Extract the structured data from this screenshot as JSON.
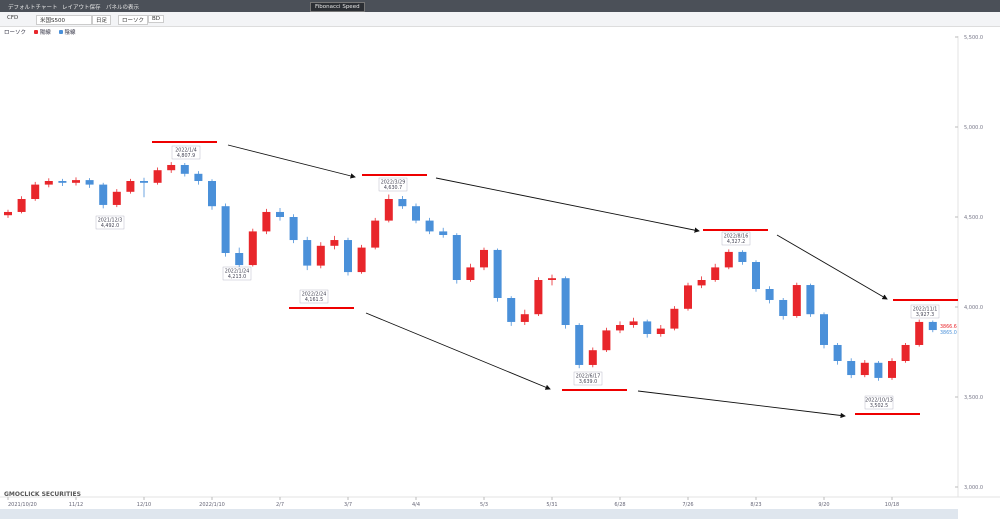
{
  "ui": {
    "toolbar": [
      "デフォルトチャート",
      "レイアウト保存",
      "パネルの表示",
      "Fibonacci Speed"
    ],
    "symbol_bar": [
      "CFD",
      "米国S500",
      "日足",
      "ローソク",
      "BD"
    ],
    "logo": "GMOCLICK SECURITIES"
  },
  "chart_data": {
    "type": "candlestick",
    "legend": [
      "ローソク",
      "陽線",
      "陰線"
    ],
    "up_color": "#e8262b",
    "down_color": "#4a90d9",
    "categories": [
      "2021/10/20",
      null,
      null,
      null,
      null,
      "11/12",
      null,
      null,
      null,
      null,
      "12/10",
      null,
      null,
      null,
      null,
      "2022/1/10",
      null,
      null,
      null,
      null,
      "2/7",
      null,
      null,
      null,
      null,
      "3/7",
      null,
      null,
      null,
      null,
      "4/4",
      null,
      null,
      null,
      null,
      "5/3",
      null,
      null,
      null,
      null,
      "5/31",
      null,
      null,
      null,
      null,
      "6/28",
      null,
      null,
      null,
      null,
      "7/26",
      null,
      null,
      null,
      null,
      "8/23",
      null,
      null,
      null,
      null,
      "9/20",
      null,
      null,
      null,
      null,
      "10/18",
      null,
      null,
      null
    ],
    "open": [
      4510,
      4528,
      4600,
      4680,
      4700,
      4690,
      4705,
      4680,
      4567,
      4640,
      4700,
      4690,
      4760,
      4789,
      4740,
      4700,
      4560,
      4300,
      4233,
      4420,
      4528,
      4500,
      4372,
      4230,
      4340,
      4372,
      4194,
      4330,
      4480,
      4600,
      4560,
      4480,
      4420,
      4400,
      4150,
      4220,
      4317,
      4050,
      3917,
      3960,
      4150,
      4160,
      3900,
      3678,
      3760,
      3870,
      3900,
      3920,
      3850,
      3880,
      3990,
      4120,
      4150,
      4220,
      4306,
      4250,
      4100,
      4039,
      3950,
      4122,
      3960,
      3789,
      3700,
      3622,
      3690,
      3606,
      3700,
      3789,
      3917
    ],
    "high": [
      4540,
      4615,
      4695,
      4715,
      4712,
      4720,
      4716,
      4690,
      4655,
      4712,
      4718,
      4775,
      4805,
      4800,
      4755,
      4710,
      4575,
      4330,
      4435,
      4545,
      4550,
      4515,
      4390,
      4360,
      4395,
      4385,
      4345,
      4495,
      4625,
      4617,
      4575,
      4495,
      4440,
      4410,
      4240,
      4330,
      4325,
      4060,
      3985,
      4165,
      4180,
      4170,
      3910,
      3775,
      3885,
      3920,
      3940,
      3930,
      3900,
      4005,
      4135,
      4170,
      4240,
      4320,
      4315,
      4260,
      4115,
      4050,
      4135,
      4130,
      3970,
      3800,
      3715,
      3705,
      3700,
      3715,
      3800,
      3930,
      3925
    ],
    "low": [
      4495,
      4520,
      4590,
      4665,
      4672,
      4675,
      4662,
      4548,
      4555,
      4630,
      4610,
      4680,
      4745,
      4725,
      4680,
      4540,
      4280,
      4200,
      4225,
      4405,
      4480,
      4355,
      4205,
      4215,
      4320,
      4175,
      4185,
      4320,
      4470,
      4545,
      4465,
      4405,
      4385,
      4130,
      4140,
      4205,
      4030,
      3895,
      3900,
      3950,
      4120,
      3880,
      3660,
      3665,
      3750,
      3855,
      3885,
      3830,
      3835,
      3870,
      3980,
      4105,
      4140,
      4210,
      4235,
      4085,
      4020,
      3930,
      3940,
      3945,
      3770,
      3680,
      3605,
      3610,
      3590,
      3595,
      3690,
      3780,
      3860
    ],
    "close": [
      4528,
      4600,
      4680,
      4700,
      4690,
      4705,
      4680,
      4567,
      4640,
      4700,
      4690,
      4760,
      4789,
      4740,
      4700,
      4560,
      4300,
      4233,
      4420,
      4528,
      4500,
      4372,
      4230,
      4340,
      4372,
      4194,
      4330,
      4480,
      4600,
      4560,
      4480,
      4420,
      4400,
      4150,
      4220,
      4317,
      4050,
      3917,
      3960,
      4150,
      4160,
      3900,
      3678,
      3760,
      3870,
      3900,
      3920,
      3850,
      3880,
      3990,
      4120,
      4150,
      4220,
      4306,
      4250,
      4100,
      4039,
      3950,
      4122,
      3960,
      3789,
      3700,
      3622,
      3690,
      3606,
      3700,
      3789,
      3917,
      3872
    ],
    "ylim": [
      2983.3,
      5505.6
    ],
    "yticks": [
      {
        "value": 3000,
        "label": "3,000.0"
      },
      {
        "value": 3500,
        "label": "3,500.0"
      },
      {
        "value": 4000,
        "label": "4,000.0"
      },
      {
        "value": 4500,
        "label": "4,500.0"
      },
      {
        "value": 5000,
        "label": "5,000.0"
      },
      {
        "value": 5500,
        "label": "5,500.0"
      }
    ],
    "annotations": [
      [
        "2021/12/3",
        "4,492.0"
      ],
      [
        "2022/1/4",
        "4,807.9"
      ],
      [
        "2022/1/24",
        "4,213.0"
      ],
      [
        "2022/2/24",
        "4,161.5"
      ],
      [
        "2022/3/29",
        "4,630.7"
      ],
      [
        "2022/6/17",
        "3,639.0"
      ],
      [
        "2022/8/16",
        "4,327.2"
      ],
      [
        "2022/10/13",
        "3,502.5"
      ],
      [
        "2022/11/1",
        "3,927.3"
      ]
    ],
    "last_price_labels": [
      "3866.6",
      "3865.0"
    ]
  }
}
